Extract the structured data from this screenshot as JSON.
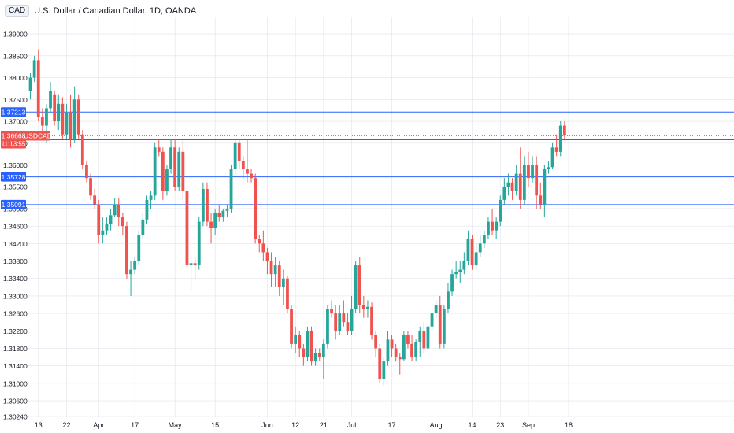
{
  "header": {
    "currency": "CAD",
    "title": "U.S. Dollar / Canadian Dollar, 1D, OANDA"
  },
  "colors": {
    "up": "#26a69a",
    "down": "#ef5350",
    "hline": "#2962ff",
    "grid": "#e0e3eb",
    "axis_text": "#131722"
  },
  "chart_data": {
    "type": "candlestick",
    "title": "U.S. Dollar / Canadian Dollar, 1D, OANDA",
    "symbol": "USDCAD",
    "ylim": [
      1.3024,
      1.392
    ],
    "y_ticks": [
      "1.39000",
      "1.38500",
      "1.38000",
      "1.37500",
      "1.37000",
      "1.36500",
      "1.36000",
      "1.35500",
      "1.35000",
      "1.34600",
      "1.34200",
      "1.33800",
      "1.33400",
      "1.33000",
      "1.32600",
      "1.32200",
      "1.31800",
      "1.31400",
      "1.31000",
      "1.30600",
      "1.30240"
    ],
    "x_ticks": [
      {
        "label": "13",
        "idx": 2
      },
      {
        "label": "22",
        "idx": 9
      },
      {
        "label": "Apr",
        "idx": 17
      },
      {
        "label": "17",
        "idx": 26
      },
      {
        "label": "May",
        "idx": 36
      },
      {
        "label": "15",
        "idx": 46
      },
      {
        "label": "Jun",
        "idx": 59
      },
      {
        "label": "12",
        "idx": 66
      },
      {
        "label": "21",
        "idx": 73
      },
      {
        "label": "Jul",
        "idx": 80
      },
      {
        "label": "17",
        "idx": 90
      },
      {
        "label": "Aug",
        "idx": 101
      },
      {
        "label": "14",
        "idx": 110
      },
      {
        "label": "23",
        "idx": 117
      },
      {
        "label": "Sep",
        "idx": 124
      },
      {
        "label": "18",
        "idx": 134
      }
    ],
    "hlines": [
      {
        "value": 1.37213,
        "label": "1.37213"
      },
      {
        "value": 1.36576,
        "label": "1.36576"
      },
      {
        "value": 1.35728,
        "label": "1.35728"
      },
      {
        "value": 1.35091,
        "label": "1.35091"
      }
    ],
    "last_price": {
      "value": 1.36668,
      "label": "1.36668",
      "symbol": "USDCAD",
      "countdown": "11:13:55"
    },
    "candles": [
      {
        "o": 1.377,
        "h": 1.381,
        "l": 1.375,
        "c": 1.38
      },
      {
        "o": 1.38,
        "h": 1.385,
        "l": 1.379,
        "c": 1.384
      },
      {
        "o": 1.384,
        "h": 1.3865,
        "l": 1.37,
        "c": 1.371
      },
      {
        "o": 1.371,
        "h": 1.373,
        "l": 1.366,
        "c": 1.369
      },
      {
        "o": 1.369,
        "h": 1.374,
        "l": 1.365,
        "c": 1.373
      },
      {
        "o": 1.373,
        "h": 1.379,
        "l": 1.372,
        "c": 1.377
      },
      {
        "o": 1.376,
        "h": 1.377,
        "l": 1.369,
        "c": 1.37
      },
      {
        "o": 1.37,
        "h": 1.376,
        "l": 1.368,
        "c": 1.374
      },
      {
        "o": 1.374,
        "h": 1.3755,
        "l": 1.366,
        "c": 1.367
      },
      {
        "o": 1.367,
        "h": 1.374,
        "l": 1.366,
        "c": 1.372
      },
      {
        "o": 1.372,
        "h": 1.376,
        "l": 1.364,
        "c": 1.366
      },
      {
        "o": 1.366,
        "h": 1.378,
        "l": 1.365,
        "c": 1.375
      },
      {
        "o": 1.375,
        "h": 1.376,
        "l": 1.366,
        "c": 1.367
      },
      {
        "o": 1.367,
        "h": 1.368,
        "l": 1.359,
        "c": 1.36
      },
      {
        "o": 1.36,
        "h": 1.361,
        "l": 1.356,
        "c": 1.357
      },
      {
        "o": 1.357,
        "h": 1.358,
        "l": 1.352,
        "c": 1.353
      },
      {
        "o": 1.353,
        "h": 1.3545,
        "l": 1.35,
        "c": 1.351
      },
      {
        "o": 1.351,
        "h": 1.352,
        "l": 1.342,
        "c": 1.344
      },
      {
        "o": 1.344,
        "h": 1.348,
        "l": 1.342,
        "c": 1.345
      },
      {
        "o": 1.345,
        "h": 1.348,
        "l": 1.344,
        "c": 1.3465
      },
      {
        "o": 1.3465,
        "h": 1.35,
        "l": 1.345,
        "c": 1.3485
      },
      {
        "o": 1.3485,
        "h": 1.3525,
        "l": 1.348,
        "c": 1.351
      },
      {
        "o": 1.351,
        "h": 1.3525,
        "l": 1.346,
        "c": 1.348
      },
      {
        "o": 1.348,
        "h": 1.349,
        "l": 1.344,
        "c": 1.346
      },
      {
        "o": 1.346,
        "h": 1.347,
        "l": 1.334,
        "c": 1.335
      },
      {
        "o": 1.335,
        "h": 1.338,
        "l": 1.33,
        "c": 1.336
      },
      {
        "o": 1.336,
        "h": 1.339,
        "l": 1.335,
        "c": 1.338
      },
      {
        "o": 1.338,
        "h": 1.345,
        "l": 1.337,
        "c": 1.344
      },
      {
        "o": 1.344,
        "h": 1.349,
        "l": 1.343,
        "c": 1.3475
      },
      {
        "o": 1.3475,
        "h": 1.353,
        "l": 1.3465,
        "c": 1.352
      },
      {
        "o": 1.352,
        "h": 1.354,
        "l": 1.35,
        "c": 1.353
      },
      {
        "o": 1.353,
        "h": 1.365,
        "l": 1.352,
        "c": 1.364
      },
      {
        "o": 1.364,
        "h": 1.366,
        "l": 1.362,
        "c": 1.363
      },
      {
        "o": 1.363,
        "h": 1.364,
        "l": 1.352,
        "c": 1.354
      },
      {
        "o": 1.354,
        "h": 1.36,
        "l": 1.353,
        "c": 1.359
      },
      {
        "o": 1.359,
        "h": 1.366,
        "l": 1.358,
        "c": 1.364
      },
      {
        "o": 1.364,
        "h": 1.366,
        "l": 1.354,
        "c": 1.355
      },
      {
        "o": 1.355,
        "h": 1.364,
        "l": 1.354,
        "c": 1.363
      },
      {
        "o": 1.363,
        "h": 1.366,
        "l": 1.352,
        "c": 1.354
      },
      {
        "o": 1.354,
        "h": 1.355,
        "l": 1.336,
        "c": 1.337
      },
      {
        "o": 1.337,
        "h": 1.339,
        "l": 1.331,
        "c": 1.3375
      },
      {
        "o": 1.3375,
        "h": 1.339,
        "l": 1.334,
        "c": 1.337
      },
      {
        "o": 1.337,
        "h": 1.348,
        "l": 1.336,
        "c": 1.347
      },
      {
        "o": 1.347,
        "h": 1.356,
        "l": 1.346,
        "c": 1.3545
      },
      {
        "o": 1.3545,
        "h": 1.356,
        "l": 1.346,
        "c": 1.347
      },
      {
        "o": 1.347,
        "h": 1.349,
        "l": 1.342,
        "c": 1.3455
      },
      {
        "o": 1.3455,
        "h": 1.35,
        "l": 1.344,
        "c": 1.349
      },
      {
        "o": 1.349,
        "h": 1.351,
        "l": 1.347,
        "c": 1.348
      },
      {
        "o": 1.348,
        "h": 1.35,
        "l": 1.347,
        "c": 1.3495
      },
      {
        "o": 1.3495,
        "h": 1.351,
        "l": 1.348,
        "c": 1.35
      },
      {
        "o": 1.35,
        "h": 1.36,
        "l": 1.349,
        "c": 1.359
      },
      {
        "o": 1.359,
        "h": 1.366,
        "l": 1.358,
        "c": 1.365
      },
      {
        "o": 1.365,
        "h": 1.366,
        "l": 1.359,
        "c": 1.361
      },
      {
        "o": 1.361,
        "h": 1.362,
        "l": 1.357,
        "c": 1.359
      },
      {
        "o": 1.359,
        "h": 1.366,
        "l": 1.356,
        "c": 1.358
      },
      {
        "o": 1.358,
        "h": 1.359,
        "l": 1.356,
        "c": 1.357
      },
      {
        "o": 1.357,
        "h": 1.358,
        "l": 1.342,
        "c": 1.343
      },
      {
        "o": 1.343,
        "h": 1.344,
        "l": 1.34,
        "c": 1.342
      },
      {
        "o": 1.342,
        "h": 1.345,
        "l": 1.338,
        "c": 1.34
      },
      {
        "o": 1.34,
        "h": 1.341,
        "l": 1.335,
        "c": 1.338
      },
      {
        "o": 1.338,
        "h": 1.34,
        "l": 1.332,
        "c": 1.335
      },
      {
        "o": 1.335,
        "h": 1.339,
        "l": 1.332,
        "c": 1.337
      },
      {
        "o": 1.337,
        "h": 1.338,
        "l": 1.33,
        "c": 1.332
      },
      {
        "o": 1.332,
        "h": 1.336,
        "l": 1.328,
        "c": 1.334
      },
      {
        "o": 1.334,
        "h": 1.3345,
        "l": 1.326,
        "c": 1.327
      },
      {
        "o": 1.327,
        "h": 1.328,
        "l": 1.318,
        "c": 1.319
      },
      {
        "o": 1.319,
        "h": 1.323,
        "l": 1.317,
        "c": 1.321
      },
      {
        "o": 1.321,
        "h": 1.322,
        "l": 1.316,
        "c": 1.318
      },
      {
        "o": 1.318,
        "h": 1.319,
        "l": 1.314,
        "c": 1.316
      },
      {
        "o": 1.316,
        "h": 1.323,
        "l": 1.315,
        "c": 1.322
      },
      {
        "o": 1.322,
        "h": 1.323,
        "l": 1.314,
        "c": 1.315
      },
      {
        "o": 1.315,
        "h": 1.318,
        "l": 1.314,
        "c": 1.317
      },
      {
        "o": 1.317,
        "h": 1.318,
        "l": 1.315,
        "c": 1.316
      },
      {
        "o": 1.316,
        "h": 1.32,
        "l": 1.311,
        "c": 1.319
      },
      {
        "o": 1.319,
        "h": 1.328,
        "l": 1.318,
        "c": 1.327
      },
      {
        "o": 1.327,
        "h": 1.329,
        "l": 1.325,
        "c": 1.326
      },
      {
        "o": 1.326,
        "h": 1.328,
        "l": 1.32,
        "c": 1.322
      },
      {
        "o": 1.322,
        "h": 1.328,
        "l": 1.321,
        "c": 1.326
      },
      {
        "o": 1.326,
        "h": 1.329,
        "l": 1.323,
        "c": 1.324
      },
      {
        "o": 1.324,
        "h": 1.326,
        "l": 1.321,
        "c": 1.322
      },
      {
        "o": 1.322,
        "h": 1.33,
        "l": 1.321,
        "c": 1.327
      },
      {
        "o": 1.327,
        "h": 1.338,
        "l": 1.326,
        "c": 1.337
      },
      {
        "o": 1.337,
        "h": 1.339,
        "l": 1.326,
        "c": 1.328
      },
      {
        "o": 1.328,
        "h": 1.33,
        "l": 1.325,
        "c": 1.327
      },
      {
        "o": 1.327,
        "h": 1.329,
        "l": 1.325,
        "c": 1.3275
      },
      {
        "o": 1.3275,
        "h": 1.3285,
        "l": 1.32,
        "c": 1.321
      },
      {
        "o": 1.321,
        "h": 1.322,
        "l": 1.316,
        "c": 1.318
      },
      {
        "o": 1.318,
        "h": 1.319,
        "l": 1.31,
        "c": 1.311
      },
      {
        "o": 1.311,
        "h": 1.316,
        "l": 1.3095,
        "c": 1.315
      },
      {
        "o": 1.315,
        "h": 1.322,
        "l": 1.314,
        "c": 1.32
      },
      {
        "o": 1.32,
        "h": 1.321,
        "l": 1.316,
        "c": 1.318
      },
      {
        "o": 1.318,
        "h": 1.319,
        "l": 1.315,
        "c": 1.316
      },
      {
        "o": 1.316,
        "h": 1.317,
        "l": 1.312,
        "c": 1.3155
      },
      {
        "o": 1.3155,
        "h": 1.322,
        "l": 1.315,
        "c": 1.321
      },
      {
        "o": 1.321,
        "h": 1.322,
        "l": 1.318,
        "c": 1.319
      },
      {
        "o": 1.319,
        "h": 1.321,
        "l": 1.315,
        "c": 1.316
      },
      {
        "o": 1.316,
        "h": 1.32,
        "l": 1.315,
        "c": 1.3195
      },
      {
        "o": 1.3195,
        "h": 1.323,
        "l": 1.316,
        "c": 1.322
      },
      {
        "o": 1.322,
        "h": 1.324,
        "l": 1.317,
        "c": 1.318
      },
      {
        "o": 1.318,
        "h": 1.324,
        "l": 1.317,
        "c": 1.323
      },
      {
        "o": 1.323,
        "h": 1.327,
        "l": 1.322,
        "c": 1.326
      },
      {
        "o": 1.326,
        "h": 1.329,
        "l": 1.325,
        "c": 1.328
      },
      {
        "o": 1.328,
        "h": 1.33,
        "l": 1.318,
        "c": 1.319
      },
      {
        "o": 1.319,
        "h": 1.328,
        "l": 1.318,
        "c": 1.327
      },
      {
        "o": 1.327,
        "h": 1.333,
        "l": 1.326,
        "c": 1.331
      },
      {
        "o": 1.331,
        "h": 1.336,
        "l": 1.33,
        "c": 1.335
      },
      {
        "o": 1.335,
        "h": 1.338,
        "l": 1.334,
        "c": 1.3355
      },
      {
        "o": 1.3355,
        "h": 1.338,
        "l": 1.333,
        "c": 1.336
      },
      {
        "o": 1.336,
        "h": 1.34,
        "l": 1.335,
        "c": 1.338
      },
      {
        "o": 1.338,
        "h": 1.345,
        "l": 1.337,
        "c": 1.343
      },
      {
        "o": 1.343,
        "h": 1.344,
        "l": 1.336,
        "c": 1.337
      },
      {
        "o": 1.337,
        "h": 1.342,
        "l": 1.336,
        "c": 1.34
      },
      {
        "o": 1.34,
        "h": 1.344,
        "l": 1.339,
        "c": 1.342
      },
      {
        "o": 1.342,
        "h": 1.345,
        "l": 1.341,
        "c": 1.344
      },
      {
        "o": 1.344,
        "h": 1.348,
        "l": 1.343,
        "c": 1.347
      },
      {
        "o": 1.347,
        "h": 1.35,
        "l": 1.344,
        "c": 1.345
      },
      {
        "o": 1.345,
        "h": 1.348,
        "l": 1.343,
        "c": 1.347
      },
      {
        "o": 1.347,
        "h": 1.353,
        "l": 1.346,
        "c": 1.352
      },
      {
        "o": 1.352,
        "h": 1.357,
        "l": 1.351,
        "c": 1.355
      },
      {
        "o": 1.355,
        "h": 1.358,
        "l": 1.353,
        "c": 1.356
      },
      {
        "o": 1.356,
        "h": 1.357,
        "l": 1.352,
        "c": 1.354
      },
      {
        "o": 1.354,
        "h": 1.36,
        "l": 1.353,
        "c": 1.358
      },
      {
        "o": 1.358,
        "h": 1.364,
        "l": 1.35,
        "c": 1.352
      },
      {
        "o": 1.352,
        "h": 1.362,
        "l": 1.351,
        "c": 1.36
      },
      {
        "o": 1.36,
        "h": 1.363,
        "l": 1.355,
        "c": 1.357
      },
      {
        "o": 1.357,
        "h": 1.362,
        "l": 1.356,
        "c": 1.36
      },
      {
        "o": 1.36,
        "h": 1.362,
        "l": 1.35,
        "c": 1.353
      },
      {
        "o": 1.353,
        "h": 1.356,
        "l": 1.35,
        "c": 1.351
      },
      {
        "o": 1.351,
        "h": 1.36,
        "l": 1.348,
        "c": 1.359
      },
      {
        "o": 1.359,
        "h": 1.361,
        "l": 1.358,
        "c": 1.3595
      },
      {
        "o": 1.3595,
        "h": 1.365,
        "l": 1.359,
        "c": 1.364
      },
      {
        "o": 1.364,
        "h": 1.367,
        "l": 1.362,
        "c": 1.363
      },
      {
        "o": 1.363,
        "h": 1.37,
        "l": 1.362,
        "c": 1.369
      },
      {
        "o": 1.369,
        "h": 1.37,
        "l": 1.366,
        "c": 1.3667
      }
    ]
  }
}
